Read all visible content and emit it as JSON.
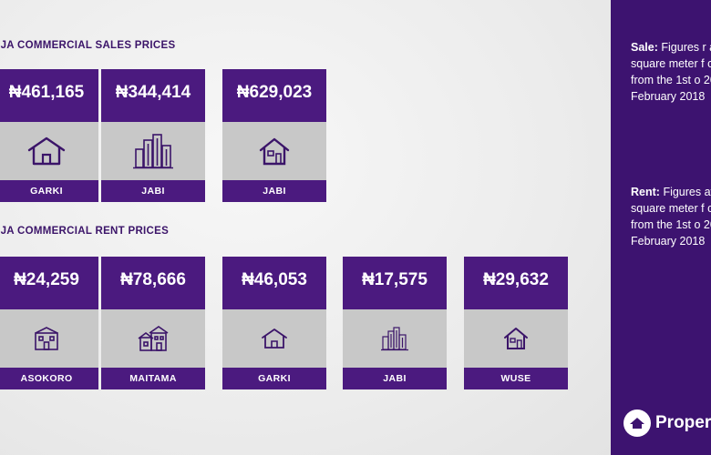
{
  "sales": {
    "title": "UJA COMMERCIAL SALES PRICES",
    "cards": [
      {
        "price": "₦461,165",
        "label": "GARKI",
        "icon": "house-outline-icon"
      },
      {
        "price": "₦344,414",
        "label": "JABI",
        "icon": "city-buildings-icon"
      },
      {
        "price": "₦629,023",
        "label": "JABI",
        "icon": "home-icon"
      }
    ]
  },
  "rent": {
    "title": "UJA COMMERCIAL RENT PRICES",
    "cards": [
      {
        "price": "₦24,259",
        "label": "ASOKORO",
        "icon": "building-icon"
      },
      {
        "price": "₦78,666",
        "label": "MAITAMA",
        "icon": "houses-icon"
      },
      {
        "price": "₦46,053",
        "label": "GARKI",
        "icon": "house-outline-icon"
      },
      {
        "price": "₦17,575",
        "label": "JABI",
        "icon": "city-buildings-icon"
      },
      {
        "price": "₦29,632",
        "label": "WUSE",
        "icon": "home-icon"
      }
    ]
  },
  "sidebar": {
    "sale_heading": "Sale:",
    "sale_text": "Figures r average sales p square meter f commercial of from the 1st o 2017 till the 18 February 2018",
    "rent_heading": "Rent:",
    "rent_text": "Figures average rental square meter f commercial of from the 1st o 2017 till the 18 February 2018",
    "brand": "Propert",
    "logo_icon": "propertypro-logo-icon"
  },
  "colors": {
    "purple": "#4b1a7f",
    "dark_purple": "#3d1370",
    "icon_panel": "#c8c8c8",
    "background": "#ebebeb"
  }
}
